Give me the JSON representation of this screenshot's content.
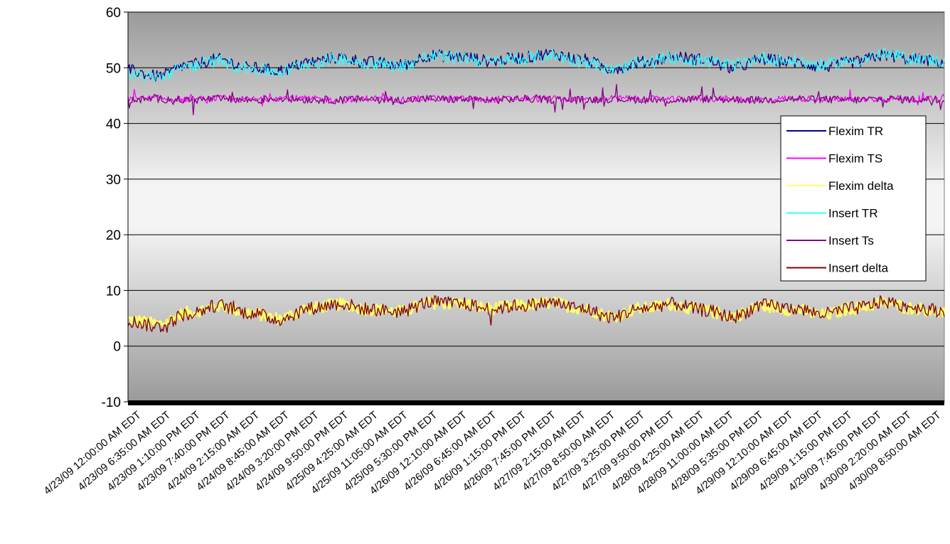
{
  "chart_data": {
    "type": "line",
    "title": "",
    "xlabel": "",
    "ylabel": "",
    "ylim": [
      -10,
      60
    ],
    "yticks": [
      -10,
      0,
      10,
      20,
      30,
      40,
      50,
      60
    ],
    "grid": "horizontal",
    "legend_position": "right",
    "x_range": [
      "4/23/09 12:00:00 AM EDT",
      "4/30/09 1:55:00 PM EDT"
    ],
    "x_interval_minutes": 5,
    "x_tick_labels": [
      "4/23/09 12:00:00 AM EDT",
      "4/23/09 6:35:00 AM EDT",
      "4/23/09 1:10:00 PM EDT",
      "4/23/09 7:40:00 PM EDT",
      "4/24/09 2:15:00 AM EDT",
      "4/24/09 8:45:00 AM EDT",
      "4/24/09 3:20:00 PM EDT",
      "4/24/09 9:50:00 PM EDT",
      "4/25/09 4:25:00 AM EDT",
      "4/25/09 11:05:00 AM EDT",
      "4/25/09 5:30:00 PM EDT",
      "4/26/09 12:10:00 AM EDT",
      "4/26/09 6:45:00 AM EDT",
      "4/26/09 1:15:00 PM EDT",
      "4/26/09 7:45:00 PM EDT",
      "4/27/09 2:15:00 AM EDT",
      "4/27/09 8:50:00 AM EDT",
      "4/27/09 3:25:00 PM EDT",
      "4/27/09 9:50:00 PM EDT",
      "4/28/09 4:25:00 AM EDT",
      "4/28/09 11:00:00 AM EDT",
      "4/28/09 5:35:00 PM EDT",
      "4/29/09 12:10:00 AM EDT",
      "4/29/09 6:45:00 AM EDT",
      "4/29/09 1:15:00 PM EDT",
      "4/29/09 7:45:00 PM EDT",
      "4/30/09 2:20:00 AM EDT",
      "4/30/09 8:50:00 AM EDT"
    ],
    "series": [
      {
        "name": "Flexim TR",
        "color": "#000080",
        "x": [
          "4/23/09 12:00 AM",
          "4/23/09 6:35 AM",
          "4/23/09 1:10 PM",
          "4/23/09 7:40 PM",
          "4/24/09 2:15 AM",
          "4/24/09 8:45 AM",
          "4/24/09 3:20 PM",
          "4/24/09 9:50 PM",
          "4/25/09 4:25 AM",
          "4/25/09 11:05 AM",
          "4/25/09 5:30 PM",
          "4/26/09 12:10 AM",
          "4/26/09 6:45 AM",
          "4/26/09 1:15 PM",
          "4/26/09 7:45 PM",
          "4/27/09 2:15 AM",
          "4/27/09 8:50 AM",
          "4/27/09 3:25 PM",
          "4/27/09 9:50 PM",
          "4/28/09 4:25 AM",
          "4/28/09 11:00 AM",
          "4/28/09 5:35 PM",
          "4/29/09 12:10 AM",
          "4/29/09 6:45 AM",
          "4/29/09 1:15 PM",
          "4/29/09 7:45 PM",
          "4/30/09 2:20 AM",
          "4/30/09 8:50 AM"
        ],
        "values": [
          49.5,
          48.5,
          50.5,
          51.5,
          50,
          49.5,
          51,
          51.8,
          51,
          50.5,
          52.2,
          52,
          51.2,
          51.8,
          52.5,
          51.5,
          49.8,
          51,
          52,
          51.5,
          50,
          51.5,
          51,
          50.2,
          51,
          52.2,
          51.5,
          51
        ]
      },
      {
        "name": "Flexim TS",
        "color": "#ff00ff",
        "x": [
          "4/23/09 12:00 AM",
          "4/23/09 6:35 AM",
          "4/23/09 1:10 PM",
          "4/23/09 7:40 PM",
          "4/24/09 2:15 AM",
          "4/24/09 8:45 AM",
          "4/24/09 3:20 PM",
          "4/24/09 9:50 PM",
          "4/25/09 4:25 AM",
          "4/25/09 11:05 AM",
          "4/25/09 5:30 PM",
          "4/26/09 12:10 AM",
          "4/26/09 6:45 AM",
          "4/26/09 1:15 PM",
          "4/26/09 7:45 PM",
          "4/27/09 2:15 AM",
          "4/27/09 8:50 AM",
          "4/27/09 3:25 PM",
          "4/27/09 9:50 PM",
          "4/28/09 4:25 AM",
          "4/28/09 11:00 AM",
          "4/28/09 5:35 PM",
          "4/29/09 12:10 AM",
          "4/29/09 6:45 AM",
          "4/29/09 1:15 PM",
          "4/29/09 7:45 PM",
          "4/30/09 2:20 AM",
          "4/30/09 8:50 AM"
        ],
        "values": [
          44.3,
          44.5,
          44.3,
          44.5,
          44.3,
          44.6,
          44.4,
          44.3,
          44.5,
          44.3,
          44.5,
          44.4,
          44.3,
          44.5,
          44.4,
          44.3,
          44.5,
          44.4,
          44.3,
          44.5,
          44.4,
          44.3,
          44.5,
          44.4,
          44.3,
          44.5,
          44.4,
          44.3
        ]
      },
      {
        "name": "Flexim delta",
        "color": "#ffff66",
        "x": [
          "4/23/09 12:00 AM",
          "4/23/09 6:35 AM",
          "4/23/09 1:10 PM",
          "4/23/09 7:40 PM",
          "4/24/09 2:15 AM",
          "4/24/09 8:45 AM",
          "4/24/09 3:20 PM",
          "4/24/09 9:50 PM",
          "4/25/09 4:25 AM",
          "4/25/09 11:05 AM",
          "4/25/09 5:30 PM",
          "4/26/09 12:10 AM",
          "4/26/09 6:45 AM",
          "4/26/09 1:15 PM",
          "4/26/09 7:45 PM",
          "4/27/09 2:15 AM",
          "4/27/09 8:50 AM",
          "4/27/09 3:25 PM",
          "4/27/09 9:50 PM",
          "4/28/09 4:25 AM",
          "4/28/09 11:00 AM",
          "4/28/09 5:35 PM",
          "4/29/09 12:10 AM",
          "4/29/09 6:45 AM",
          "4/29/09 1:15 PM",
          "4/29/09 7:45 PM",
          "4/30/09 2:20 AM",
          "4/30/09 8:50 AM"
        ],
        "values": [
          4.8,
          4,
          6,
          7.2,
          6,
          5,
          6.8,
          7.5,
          6.6,
          6.2,
          7.8,
          7.6,
          6.8,
          7.3,
          7.8,
          6.8,
          5.4,
          6.8,
          7.5,
          6.4,
          5.5,
          7.2,
          6.6,
          5.6,
          6.8,
          7.7,
          6.8,
          6
        ]
      },
      {
        "name": "Insert TR",
        "color": "#33ffff",
        "x": [
          "4/23/09 12:00 AM",
          "4/23/09 6:35 AM",
          "4/23/09 1:10 PM",
          "4/23/09 7:40 PM",
          "4/24/09 2:15 AM",
          "4/24/09 8:45 AM",
          "4/24/09 3:20 PM",
          "4/24/09 9:50 PM",
          "4/25/09 4:25 AM",
          "4/25/09 11:05 AM",
          "4/25/09 5:30 PM",
          "4/26/09 12:10 AM",
          "4/26/09 6:45 AM",
          "4/26/09 1:15 PM",
          "4/26/09 7:45 PM",
          "4/27/09 2:15 AM",
          "4/27/09 8:50 AM",
          "4/27/09 3:25 PM",
          "4/27/09 9:50 PM",
          "4/28/09 4:25 AM",
          "4/28/09 11:00 AM",
          "4/28/09 5:35 PM",
          "4/29/09 12:10 AM",
          "4/29/09 6:45 AM",
          "4/29/09 1:15 PM",
          "4/29/09 7:45 PM",
          "4/30/09 2:20 AM",
          "4/30/09 8:50 AM"
        ],
        "values": [
          49,
          48.3,
          50.3,
          51.3,
          49.8,
          49.3,
          50.8,
          51.6,
          50.8,
          50.3,
          52,
          51.8,
          51,
          51.6,
          52.2,
          51.2,
          49.6,
          50.8,
          51.8,
          51.2,
          50.5,
          51.8,
          51.2,
          50.5,
          51.2,
          52.4,
          51.6,
          51.2
        ]
      },
      {
        "name": "Insert Ts",
        "color": "#800080",
        "x": [
          "4/23/09 12:00 AM",
          "4/23/09 6:35 AM",
          "4/23/09 1:10 PM",
          "4/23/09 7:40 PM",
          "4/24/09 2:15 AM",
          "4/24/09 8:45 AM",
          "4/24/09 3:20 PM",
          "4/24/09 9:50 PM",
          "4/25/09 4:25 AM",
          "4/25/09 11:05 AM",
          "4/25/09 5:30 PM",
          "4/26/09 12:10 AM",
          "4/26/09 6:45 AM",
          "4/26/09 1:15 PM",
          "4/26/09 7:45 PM",
          "4/27/09 2:15 AM",
          "4/27/09 8:50 AM",
          "4/27/09 3:25 PM",
          "4/27/09 9:50 PM",
          "4/28/09 4:25 AM",
          "4/28/09 11:00 AM",
          "4/28/09 5:35 PM",
          "4/29/09 12:10 AM",
          "4/29/09 6:45 AM",
          "4/29/09 1:15 PM",
          "4/29/09 7:45 PM",
          "4/30/09 2:20 AM",
          "4/30/09 8:50 AM"
        ],
        "values": [
          44.2,
          44.4,
          44.2,
          44.4,
          44.2,
          44.5,
          44.3,
          44.2,
          44.4,
          44.2,
          44.4,
          44.3,
          44.2,
          44.4,
          44.3,
          44.2,
          44.4,
          44.3,
          44.2,
          44.4,
          44.3,
          44.2,
          44.4,
          44.3,
          44.2,
          44.4,
          44.3,
          44.2
        ]
      },
      {
        "name": "Insert delta",
        "color": "#800000",
        "x": [
          "4/23/09 12:00 AM",
          "4/23/09 6:35 AM",
          "4/23/09 1:10 PM",
          "4/23/09 7:40 PM",
          "4/24/09 2:15 AM",
          "4/24/09 8:45 AM",
          "4/24/09 3:20 PM",
          "4/24/09 9:50 PM",
          "4/25/09 4:25 AM",
          "4/25/09 11:05 AM",
          "4/25/09 5:30 PM",
          "4/26/09 12:10 AM",
          "4/26/09 6:45 AM",
          "4/26/09 1:15 PM",
          "4/26/09 7:45 PM",
          "4/27/09 2:15 AM",
          "4/27/09 8:50 AM",
          "4/27/09 3:25 PM",
          "4/27/09 9:50 PM",
          "4/28/09 4:25 AM",
          "4/28/09 11:00 AM",
          "4/28/09 5:35 PM",
          "4/29/09 12:10 AM",
          "4/29/09 6:45 AM",
          "4/29/09 1:15 PM",
          "4/29/09 7:45 PM",
          "4/30/09 2:20 AM",
          "4/30/09 8:50 AM"
        ],
        "values": [
          4.5,
          3.5,
          5.8,
          7.3,
          6,
          4.8,
          6.8,
          7.6,
          6.6,
          6.2,
          7.9,
          7.6,
          6.7,
          7.3,
          7.8,
          6.8,
          5.2,
          6.8,
          7.6,
          6.5,
          5.3,
          7.3,
          6.8,
          5.8,
          6.8,
          7.9,
          7,
          6.3
        ]
      }
    ]
  }
}
